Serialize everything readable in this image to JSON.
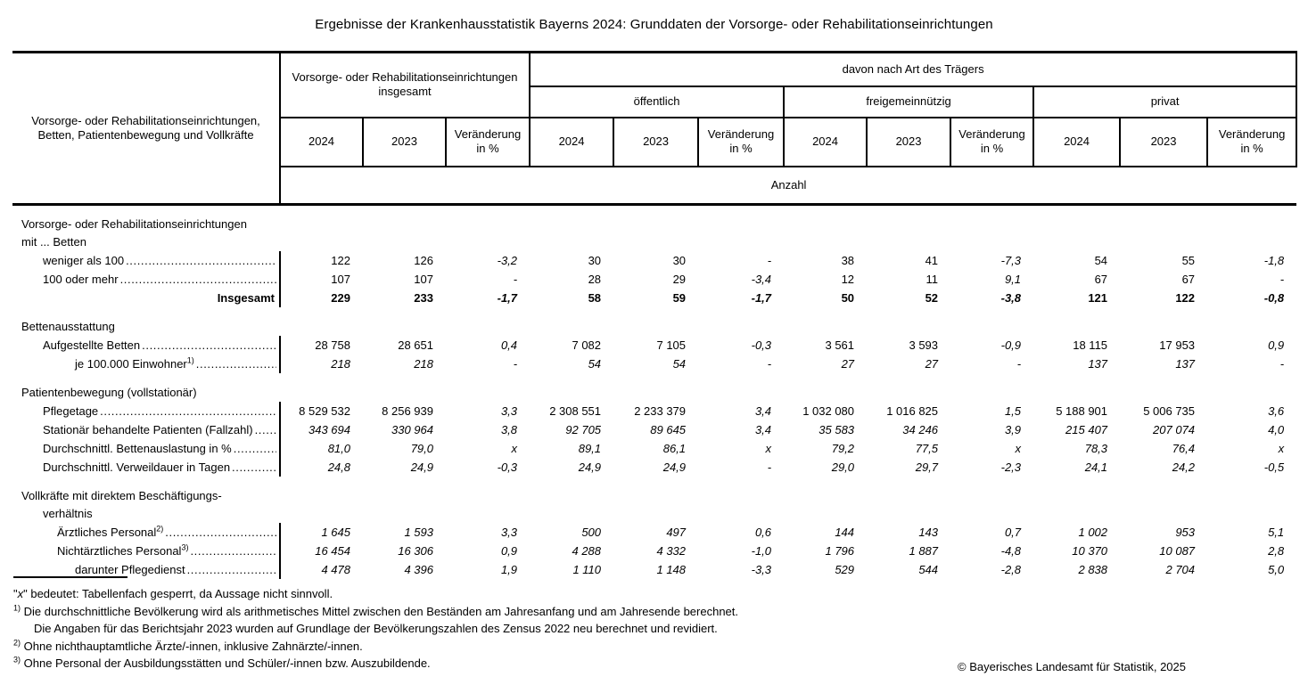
{
  "title": "Ergebnisse der Krankenhausstatistik Bayerns 2024: Grunddaten der Vorsorge- oder Rehabilitationseinrichtungen",
  "table": {
    "stub_header": "Vorsorge- oder Rehabilitationseinrichtungen, Betten, Patientenbewegung und Vollkräfte",
    "group_total": "Vorsorge- oder Rehabilitationseinrichtungen insgesamt",
    "davon": "davon nach Art des Trägers",
    "groups": [
      "öffentlich",
      "freigemeinnützig",
      "privat"
    ],
    "year_cols": [
      "2024",
      "2023",
      "Veränderung in %"
    ],
    "unit_row": "Anzahl",
    "rows": [
      {
        "type": "section",
        "indent": 0,
        "label": "Vorsorge- oder Rehabilitationseinrichtungen"
      },
      {
        "type": "section",
        "indent": 0,
        "label": "mit ... Betten"
      },
      {
        "type": "data",
        "indent": 1,
        "label": "weniger als 100",
        "leader": true,
        "italic": false,
        "values": [
          "122",
          "126",
          "-3,2",
          "30",
          "30",
          "-",
          "38",
          "41",
          "-7,3",
          "54",
          "55",
          "-1,8"
        ]
      },
      {
        "type": "data",
        "indent": 1,
        "label": "100 oder mehr",
        "leader": true,
        "italic": false,
        "values": [
          "107",
          "107",
          "-",
          "28",
          "29",
          "-3,4",
          "12",
          "11",
          "9,1",
          "67",
          "67",
          "-"
        ]
      },
      {
        "type": "total",
        "indent": 1,
        "label": "Insgesamt",
        "leader": false,
        "italic": false,
        "values": [
          "229",
          "233",
          "-1,7",
          "58",
          "59",
          "-1,7",
          "50",
          "52",
          "-3,8",
          "121",
          "122",
          "-0,8"
        ]
      },
      {
        "type": "spacer"
      },
      {
        "type": "section",
        "indent": 0,
        "label": "Bettenausstattung"
      },
      {
        "type": "data",
        "indent": 1,
        "label": "Aufgestellte Betten",
        "leader": true,
        "italic": false,
        "values": [
          "28 758",
          "28 651",
          "0,4",
          "7 082",
          "7 105",
          "-0,3",
          "3 561",
          "3 593",
          "-0,9",
          "18 115",
          "17 953",
          "0,9"
        ]
      },
      {
        "type": "data",
        "indent": 3,
        "label": "je 100.000 Einwohner",
        "sup": "1)",
        "leader": true,
        "italic": true,
        "values": [
          "218",
          "218",
          "-",
          "54",
          "54",
          "-",
          "27",
          "27",
          "-",
          "137",
          "137",
          "-"
        ]
      },
      {
        "type": "spacer"
      },
      {
        "type": "section",
        "indent": 0,
        "label": "Patientenbewegung (vollstationär)"
      },
      {
        "type": "data",
        "indent": 1,
        "label": "Pflegetage",
        "leader": true,
        "italic": false,
        "values": [
          "8 529 532",
          "8 256 939",
          "3,3",
          "2 308 551",
          "2 233 379",
          "3,4",
          "1 032 080",
          "1 016 825",
          "1,5",
          "5 188 901",
          "5 006 735",
          "3,6"
        ]
      },
      {
        "type": "data",
        "indent": 1,
        "label": "Stationär behandelte Patienten (Fallzahl)",
        "leader": true,
        "italic": true,
        "values": [
          "343 694",
          "330 964",
          "3,8",
          "92 705",
          "89 645",
          "3,4",
          "35 583",
          "34 246",
          "3,9",
          "215 407",
          "207 074",
          "4,0"
        ]
      },
      {
        "type": "data",
        "indent": 1,
        "label": "Durchschnittl. Bettenauslastung in %",
        "leader": true,
        "italic": true,
        "values": [
          "81,0",
          "79,0",
          "x",
          "89,1",
          "86,1",
          "x",
          "79,2",
          "77,5",
          "x",
          "78,3",
          "76,4",
          "x"
        ]
      },
      {
        "type": "data",
        "indent": 1,
        "label": "Durchschnittl. Verweildauer in Tagen",
        "leader": true,
        "italic": true,
        "values": [
          "24,8",
          "24,9",
          "-0,3",
          "24,9",
          "24,9",
          "-",
          "29,0",
          "29,7",
          "-2,3",
          "24,1",
          "24,2",
          "-0,5"
        ]
      },
      {
        "type": "spacer"
      },
      {
        "type": "section",
        "indent": 0,
        "label": "Vollkräfte mit direktem Beschäftigungs-"
      },
      {
        "type": "section",
        "indent": 1,
        "label": "verhältnis"
      },
      {
        "type": "data",
        "indent": 2,
        "label": "Ärztliches Personal",
        "sup": "2)",
        "leader": true,
        "italic": true,
        "values": [
          "1 645",
          "1 593",
          "3,3",
          "500",
          "497",
          "0,6",
          "144",
          "143",
          "0,7",
          "1 002",
          "953",
          "5,1"
        ]
      },
      {
        "type": "data",
        "indent": 2,
        "label": "Nichtärztliches Personal",
        "sup": "3)",
        "leader": true,
        "italic": true,
        "values": [
          "16 454",
          "16 306",
          "0,9",
          "4 288",
          "4 332",
          "-1,0",
          "1 796",
          "1 887",
          "-4,8",
          "10 370",
          "10 087",
          "2,8"
        ]
      },
      {
        "type": "data",
        "indent": 3,
        "label": "darunter Pflegedienst",
        "leader": true,
        "italic": true,
        "values": [
          "4 478",
          "4 396",
          "1,9",
          "1 110",
          "1 148",
          "-3,3",
          "529",
          "544",
          "-2,8",
          "2 838",
          "2 704",
          "5,0"
        ]
      }
    ]
  },
  "footnotes": [
    {
      "marker": "x",
      "text": "bedeutet: Tabellenfach gesperrt, da Aussage nicht sinnvoll."
    },
    {
      "marker": "1)",
      "text": "Die durchschnittliche Bevölkerung wird als arithmetisches Mittel zwischen den Beständen am Jahresanfang und am Jahresende berechnet."
    },
    {
      "marker": "",
      "text": "Die Angaben für das Berichtsjahr 2023 wurden auf Grundlage der Bevölkerungszahlen des Zensus 2022 neu berechnet und revidiert."
    },
    {
      "marker": "2)",
      "text": "Ohne nichthauptamtliche Ärzte/-innen, inklusive Zahnärzte/-innen."
    },
    {
      "marker": "3)",
      "text": "Ohne Personal der Ausbildungsstätten und Schüler/-innen bzw. Auszubildende."
    }
  ],
  "copyright": "© Bayerisches Landesamt für Statistik, 2025"
}
